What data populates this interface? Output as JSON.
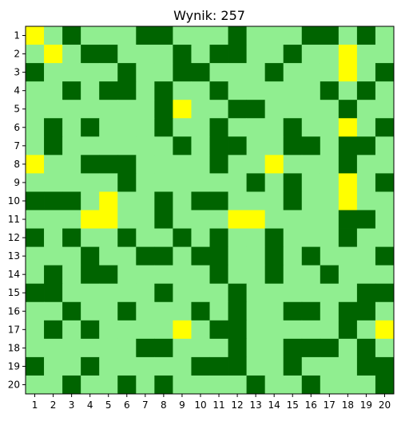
{
  "title": "Wynik: 257",
  "colors": {
    "empty": "#90ee90",
    "wall": "#006400",
    "reward": "#ffff00",
    "background": "#ffffff",
    "frame": "#000000"
  },
  "grid": {
    "rows": 20,
    "cols": 20,
    "legend_key": {
      "0": "empty (light green)",
      "1": "wall (dark green)",
      "2": "reward (yellow)"
    },
    "cells": [
      "20100011000100011010",
      "02011000101100100200",
      "10000100110001000201",
      "00101101001000001010",
      "00000001200110000100",
      "01010001001000100201",
      "01000000101100110110",
      "20011100001002000100",
      "00000100000010100201",
      "11102001011000100200",
      "00022001000220000110",
      "10100100101001000100",
      "00010011011001010001",
      "01011000001001001000",
      "11000001000100000011",
      "00100100010100110110",
      "01010000201100000102",
      "00000011000100111010",
      "10010000011100100011",
      "00100101000010010001"
    ]
  },
  "x_ticks": [
    "1",
    "2",
    "3",
    "4",
    "5",
    "6",
    "7",
    "8",
    "9",
    "10",
    "11",
    "12",
    "13",
    "14",
    "15",
    "16",
    "17",
    "18",
    "19",
    "20"
  ],
  "y_ticks": [
    "1",
    "2",
    "3",
    "4",
    "5",
    "6",
    "7",
    "8",
    "9",
    "10",
    "11",
    "12",
    "13",
    "14",
    "15",
    "16",
    "17",
    "18",
    "19",
    "20"
  ]
}
